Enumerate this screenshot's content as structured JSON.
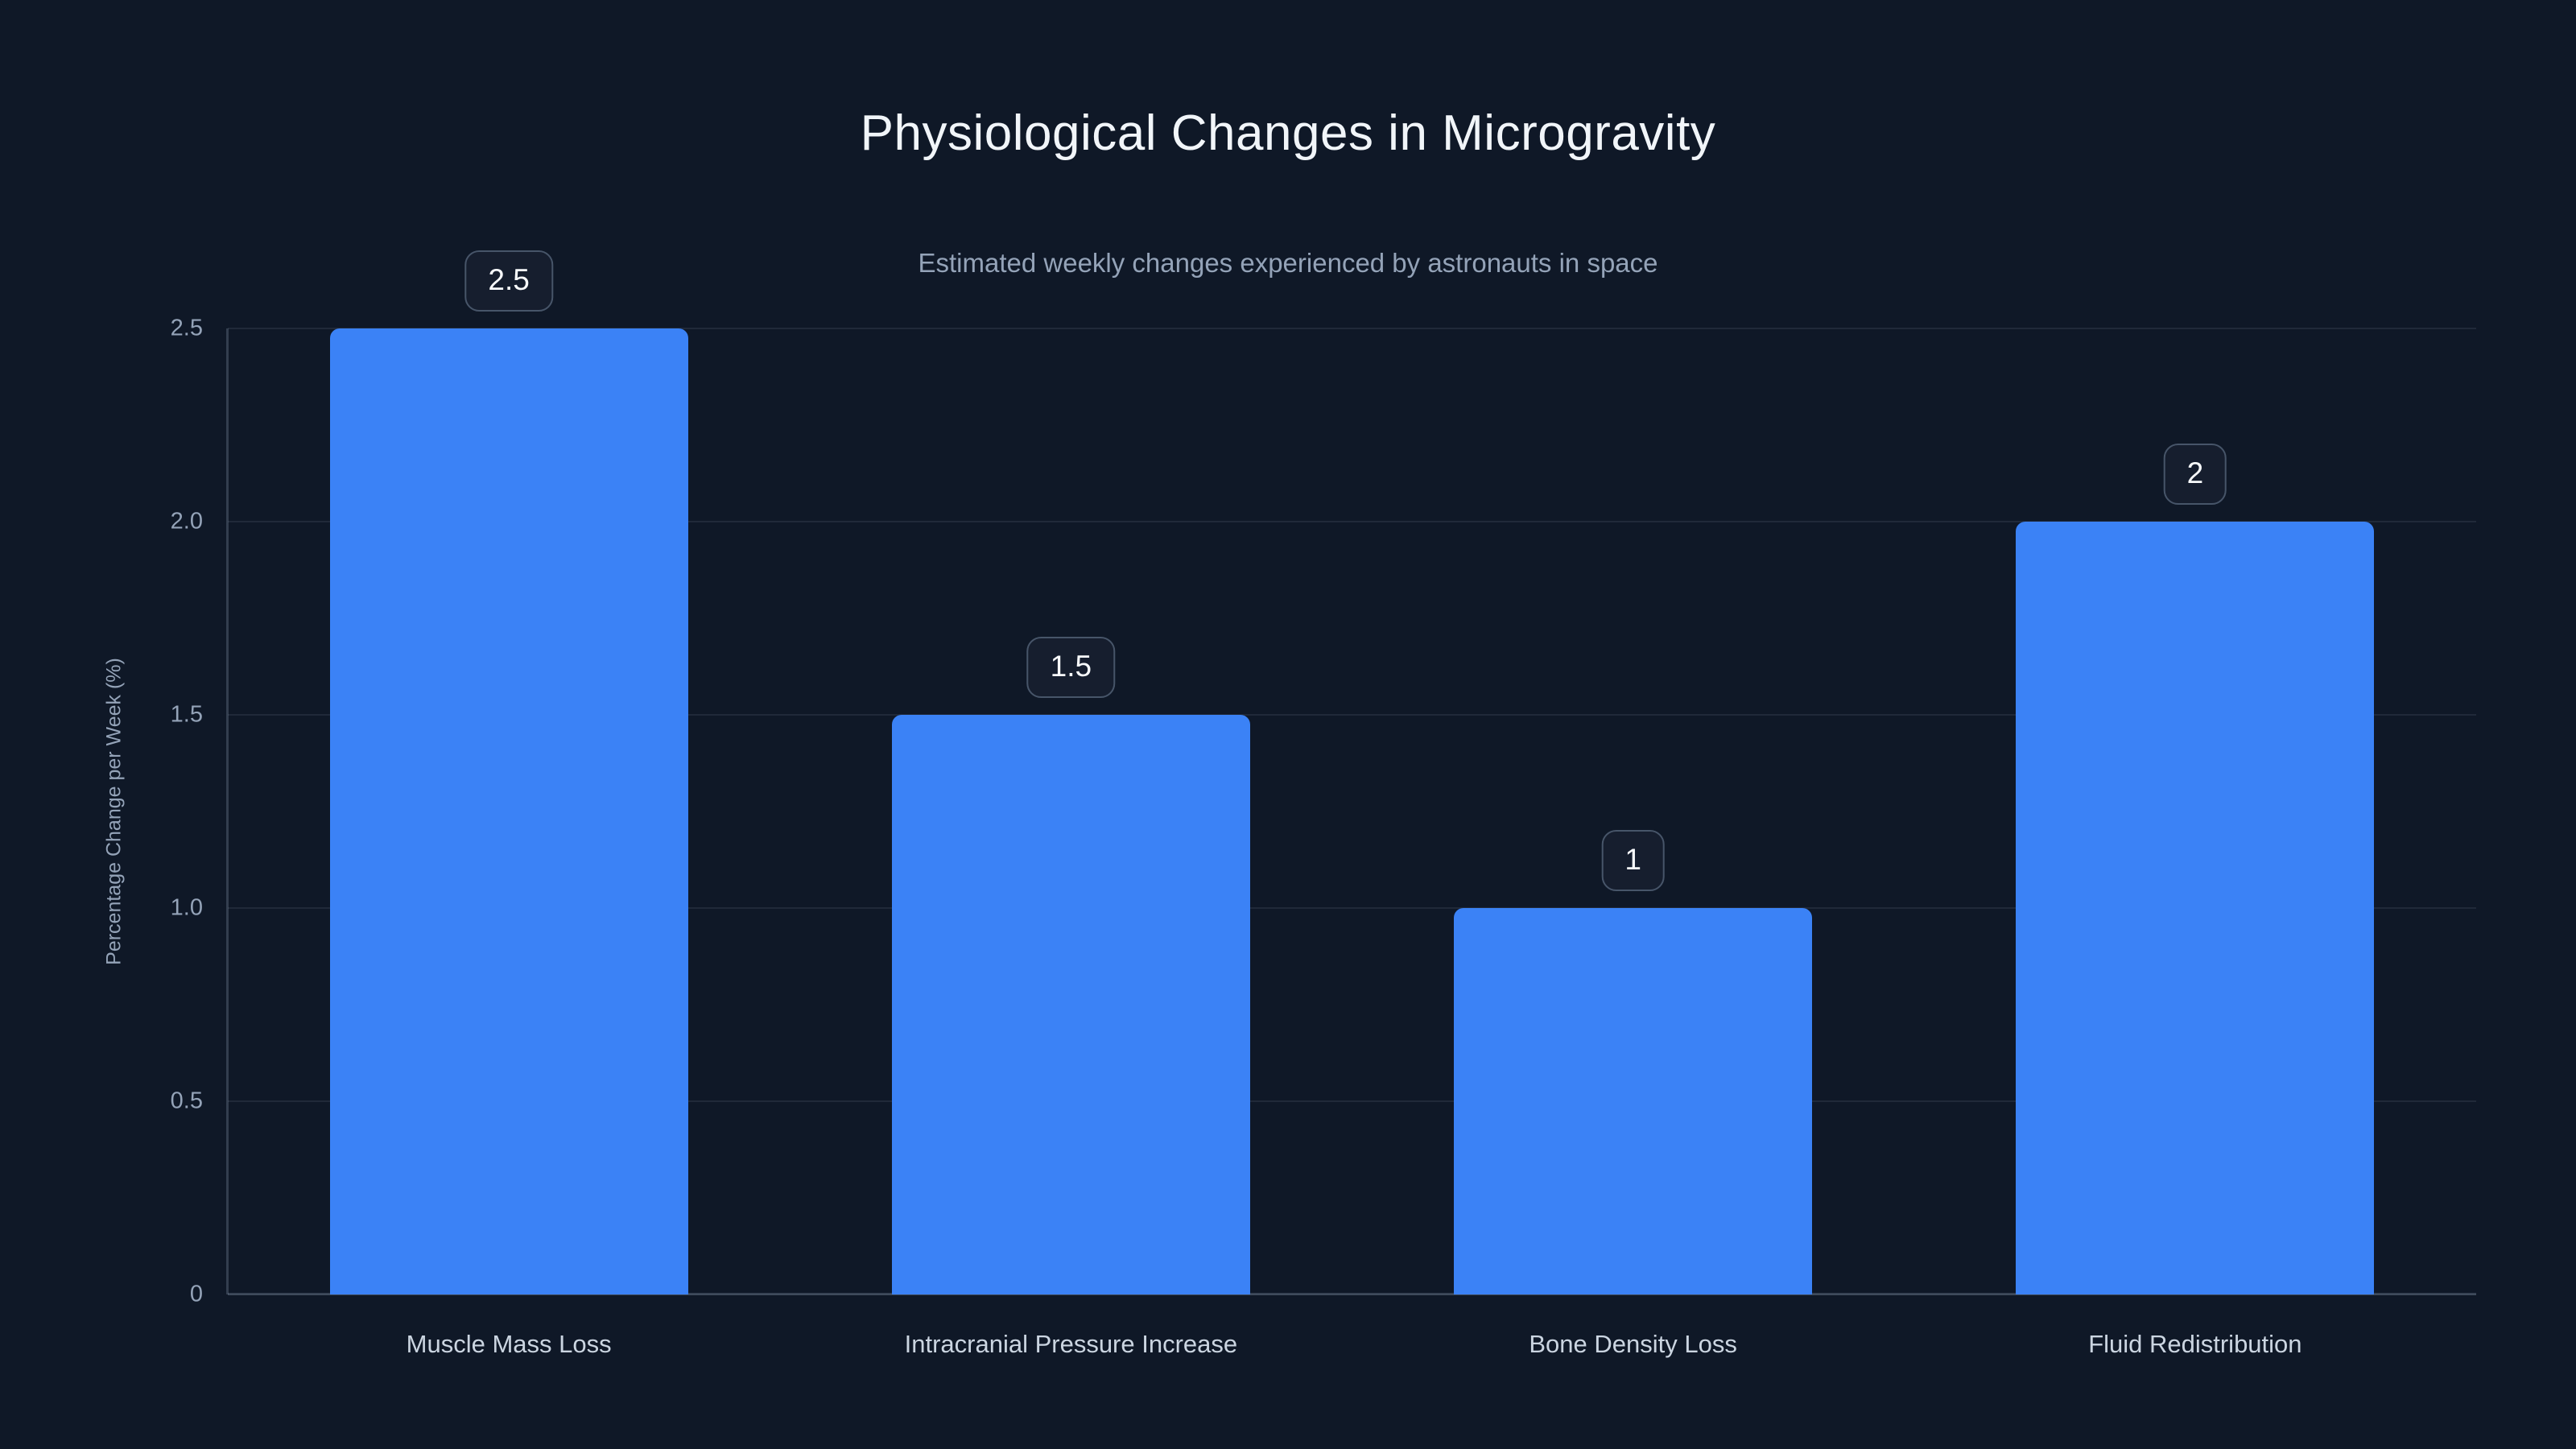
{
  "page": {
    "background_color": "#0f1827"
  },
  "chart": {
    "title": "Physiological Changes in Microgravity",
    "subtitle": "Estimated weekly changes experienced by astronauts in space",
    "y_axis_title": "Percentage Change per Week (%)"
  },
  "chart_data": {
    "type": "bar",
    "title": "Physiological Changes in Microgravity",
    "subtitle": "Estimated weekly changes experienced by astronauts in space",
    "categories": [
      "Muscle Mass Loss",
      "Intracranial Pressure Increase",
      "Bone Density Loss",
      "Fluid Redistribution"
    ],
    "values": [
      2.5,
      1.5,
      1,
      2
    ],
    "value_labels": [
      "2.5",
      "1.5",
      "1",
      "2"
    ],
    "xlabel": "",
    "ylabel": "Percentage Change per Week (%)",
    "ylim": [
      0,
      2.5
    ],
    "yticks": [
      0,
      0.5,
      1.0,
      1.5,
      2.0,
      2.5
    ],
    "ytick_labels": [
      "0",
      "0.5",
      "1.0",
      "1.5",
      "2.0",
      "2.5"
    ],
    "grid": true,
    "legend_position": "none",
    "colors": {
      "background": "#0f1827",
      "bar": "#3b82f6",
      "gridline": "rgba(148,163,184,0.13)",
      "axis_line": "rgba(148,163,184,0.28)",
      "title": "#f1f5f9",
      "subtitle": "#94a3b8",
      "tick_label": "#94a3b8",
      "category_label": "#cbd5e1",
      "badge_text": "#f8fafc",
      "badge_border": "#475569",
      "badge_background": "rgba(148,163,184,0.05)"
    }
  }
}
